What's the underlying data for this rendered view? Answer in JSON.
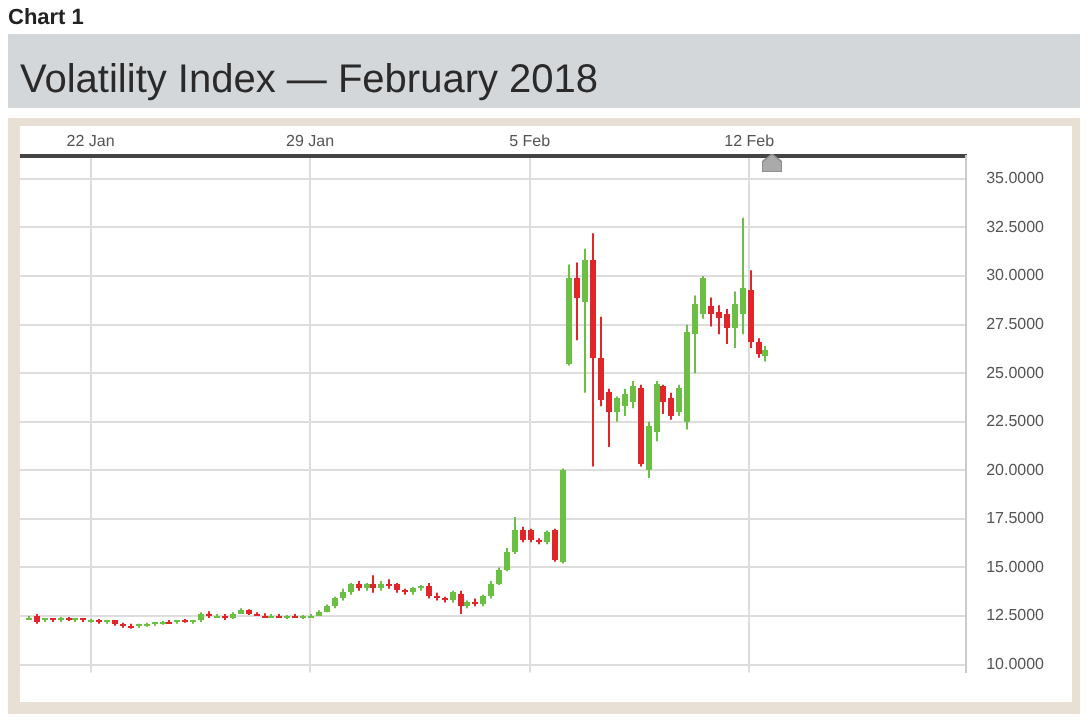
{
  "chart_data": {
    "type": "candlestick",
    "title": "Volatility Index — February 2018",
    "annotations": [
      "Chart 1"
    ],
    "x": [
      "2018-01-20T00:00",
      "2018-01-20T06:00",
      "2018-01-20T12:00",
      "2018-01-20T18:00",
      "2018-01-21T00:00",
      "2018-01-21T06:00",
      "2018-01-21T12:00",
      "2018-01-21T18:00",
      "2018-01-22T00:00",
      "2018-01-22T06:00",
      "2018-01-22T12:00",
      "2018-01-22T18:00",
      "2018-01-23T00:00",
      "2018-01-23T06:00",
      "2018-01-23T12:00",
      "2018-01-23T18:00",
      "2018-01-24T00:00",
      "2018-01-24T06:00",
      "2018-01-24T12:00",
      "2018-01-24T18:00",
      "2018-01-25T00:00",
      "2018-01-25T06:00",
      "2018-01-25T12:00",
      "2018-01-25T18:00",
      "2018-01-26T00:00",
      "2018-01-26T06:00",
      "2018-01-26T12:00",
      "2018-01-26T18:00",
      "2018-01-27T00:00",
      "2018-01-27T06:00",
      "2018-01-27T12:00",
      "2018-01-27T18:00",
      "2018-01-28T00:00",
      "2018-01-28T06:00",
      "2018-01-28T12:00",
      "2018-01-28T18:00",
      "2018-01-29T00:00",
      "2018-01-29T06:00",
      "2018-01-29T12:00",
      "2018-01-29T18:00",
      "2018-01-30T00:00",
      "2018-01-30T06:00",
      "2018-01-30T12:00",
      "2018-01-30T18:00",
      "2018-01-31T00:00",
      "2018-01-31T06:00",
      "2018-01-31T12:00",
      "2018-01-31T18:00",
      "2018-02-01T00:00",
      "2018-02-01T06:00",
      "2018-02-01T12:00",
      "2018-02-01T18:00",
      "2018-02-02T00:00",
      "2018-02-02T06:00",
      "2018-02-02T12:00",
      "2018-02-02T18:00",
      "2018-02-03T00:00",
      "2018-02-03T06:00",
      "2018-02-03T12:00",
      "2018-02-03T18:00",
      "2018-02-04T00:00",
      "2018-02-04T06:00",
      "2018-02-04T12:00",
      "2018-02-04T18:00",
      "2018-02-05T00:00",
      "2018-02-05T06:00",
      "2018-02-05T12:00",
      "2018-02-05T18:00",
      "2018-02-06T00:00",
      "2018-02-06T06:00",
      "2018-02-06T12:00",
      "2018-02-06T18:00",
      "2018-02-07T00:00",
      "2018-02-07T06:00",
      "2018-02-07T12:00",
      "2018-02-07T18:00",
      "2018-02-08T00:00",
      "2018-02-08T06:00",
      "2018-02-08T12:00",
      "2018-02-08T18:00",
      "2018-02-09T00:00",
      "2018-02-09T06:00",
      "2018-02-09T12:00",
      "2018-02-09T18:00",
      "2018-02-10T00:00",
      "2018-02-10T06:00",
      "2018-02-10T12:00",
      "2018-02-10T18:00",
      "2018-02-11T00:00",
      "2018-02-11T06:00",
      "2018-02-11T12:00",
      "2018-02-11T18:00",
      "2018-02-12T00:00",
      "2018-02-12T06:00",
      "2018-02-12T12:00"
    ],
    "ohlc": [
      [
        12.4,
        12.5,
        12.3,
        12.4
      ],
      [
        12.5,
        12.6,
        12.1,
        12.2
      ],
      [
        12.3,
        12.4,
        12.2,
        12.35
      ],
      [
        12.35,
        12.4,
        12.2,
        12.3
      ],
      [
        12.3,
        12.45,
        12.2,
        12.4
      ],
      [
        12.4,
        12.45,
        12.25,
        12.3
      ],
      [
        12.3,
        12.4,
        12.2,
        12.35
      ],
      [
        12.35,
        12.4,
        12.2,
        12.25
      ],
      [
        12.25,
        12.35,
        12.15,
        12.3
      ],
      [
        12.3,
        12.35,
        12.1,
        12.15
      ],
      [
        12.2,
        12.3,
        12.1,
        12.25
      ],
      [
        12.25,
        12.3,
        12.0,
        12.05
      ],
      [
        12.05,
        12.15,
        11.9,
        12.0
      ],
      [
        12.0,
        12.1,
        11.85,
        11.95
      ],
      [
        11.95,
        12.1,
        11.9,
        12.05
      ],
      [
        12.05,
        12.15,
        11.95,
        12.1
      ],
      [
        12.1,
        12.2,
        12.0,
        12.15
      ],
      [
        12.15,
        12.25,
        12.05,
        12.2
      ],
      [
        12.2,
        12.3,
        12.1,
        12.15
      ],
      [
        12.15,
        12.3,
        12.1,
        12.25
      ],
      [
        12.25,
        12.35,
        12.15,
        12.2
      ],
      [
        12.2,
        12.3,
        12.1,
        12.25
      ],
      [
        12.25,
        12.7,
        12.2,
        12.6
      ],
      [
        12.6,
        12.75,
        12.4,
        12.5
      ],
      [
        12.5,
        12.6,
        12.4,
        12.55
      ],
      [
        12.55,
        12.6,
        12.3,
        12.4
      ],
      [
        12.4,
        12.7,
        12.35,
        12.65
      ],
      [
        12.65,
        12.9,
        12.6,
        12.8
      ],
      [
        12.8,
        12.85,
        12.55,
        12.6
      ],
      [
        12.6,
        12.7,
        12.5,
        12.55
      ],
      [
        12.55,
        12.65,
        12.45,
        12.5
      ],
      [
        12.5,
        12.6,
        12.4,
        12.55
      ],
      [
        12.55,
        12.6,
        12.4,
        12.45
      ],
      [
        12.45,
        12.55,
        12.35,
        12.5
      ],
      [
        12.5,
        12.6,
        12.4,
        12.45
      ],
      [
        12.45,
        12.55,
        12.35,
        12.5
      ],
      [
        12.5,
        12.6,
        12.4,
        12.55
      ],
      [
        12.55,
        12.8,
        12.5,
        12.75
      ],
      [
        12.75,
        13.1,
        12.7,
        13.0
      ],
      [
        13.0,
        13.5,
        12.9,
        13.4
      ],
      [
        13.4,
        13.9,
        13.3,
        13.7
      ],
      [
        13.7,
        14.2,
        13.6,
        14.1
      ],
      [
        14.1,
        14.3,
        13.8,
        13.9
      ],
      [
        13.9,
        14.2,
        13.8,
        14.1
      ],
      [
        14.1,
        14.6,
        13.7,
        13.9
      ],
      [
        13.9,
        14.3,
        13.8,
        14.2
      ],
      [
        14.2,
        14.4,
        13.9,
        14.0
      ],
      [
        14.1,
        14.2,
        13.7,
        13.8
      ],
      [
        13.8,
        13.9,
        13.6,
        13.7
      ],
      [
        13.7,
        14.0,
        13.6,
        13.9
      ],
      [
        13.9,
        14.1,
        13.8,
        14.0
      ],
      [
        14.0,
        14.2,
        13.4,
        13.5
      ],
      [
        13.5,
        13.7,
        13.3,
        13.4
      ],
      [
        13.4,
        13.5,
        13.2,
        13.3
      ],
      [
        13.3,
        13.8,
        13.2,
        13.7
      ],
      [
        13.6,
        13.8,
        12.6,
        13.0
      ],
      [
        13.0,
        13.3,
        12.9,
        13.2
      ],
      [
        13.2,
        13.4,
        13.0,
        13.1
      ],
      [
        13.1,
        13.6,
        13.0,
        13.5
      ],
      [
        13.5,
        14.3,
        13.4,
        14.2
      ],
      [
        14.2,
        15.0,
        14.1,
        14.9
      ],
      [
        14.9,
        16.0,
        14.8,
        15.8
      ],
      [
        15.8,
        17.6,
        15.7,
        16.9
      ],
      [
        16.9,
        17.1,
        16.3,
        16.4
      ],
      [
        16.9,
        17.0,
        16.3,
        16.4
      ],
      [
        16.4,
        16.5,
        16.2,
        16.3
      ],
      [
        16.3,
        16.9,
        16.2,
        16.8
      ],
      [
        16.9,
        17.0,
        15.3,
        15.4
      ],
      [
        15.3,
        20.1,
        15.2,
        20.0
      ],
      [
        25.5,
        30.6,
        25.4,
        29.9
      ],
      [
        29.9,
        30.7,
        26.7,
        28.9
      ],
      [
        28.7,
        31.4,
        24.0,
        30.8
      ],
      [
        30.8,
        32.2,
        20.2,
        25.8
      ],
      [
        25.8,
        27.9,
        23.3,
        23.6
      ],
      [
        24.0,
        24.2,
        21.2,
        23.0
      ],
      [
        23.0,
        23.8,
        22.5,
        23.7
      ],
      [
        23.3,
        24.2,
        22.8,
        23.9
      ],
      [
        23.5,
        24.6,
        23.2,
        24.3
      ],
      [
        24.2,
        24.4,
        20.2,
        20.3
      ],
      [
        20.0,
        22.5,
        19.6,
        22.3
      ],
      [
        22.0,
        24.6,
        21.5,
        24.4
      ],
      [
        24.3,
        24.4,
        22.9,
        23.5
      ],
      [
        23.7,
        24.0,
        22.6,
        22.8
      ],
      [
        23.0,
        24.4,
        22.8,
        24.2
      ],
      [
        22.5,
        27.5,
        22.1,
        27.1
      ],
      [
        27.0,
        29.0,
        25.0,
        28.6
      ],
      [
        28.0,
        30.0,
        27.8,
        29.9
      ],
      [
        28.5,
        28.9,
        27.4,
        28.0
      ],
      [
        28.2,
        28.5,
        27.0,
        27.8
      ],
      [
        28.0,
        28.3,
        26.5,
        27.3
      ],
      [
        27.3,
        29.2,
        26.3,
        28.6
      ],
      [
        28.0,
        33.0,
        27.0,
        29.4
      ],
      [
        29.3,
        30.3,
        26.3,
        26.6
      ],
      [
        26.6,
        26.8,
        25.8,
        26.0
      ],
      [
        25.9,
        26.4,
        25.6,
        26.2
      ]
    ],
    "xlim": [
      "2018-01-19T18:00",
      "2018-02-18T22:00"
    ],
    "xticks": [
      {
        "value": "2018-01-22",
        "label": "22 Jan"
      },
      {
        "value": "2018-01-29",
        "label": "29 Jan"
      },
      {
        "value": "2018-02-05",
        "label": "5 Feb"
      },
      {
        "value": "2018-02-12",
        "label": "12 Feb"
      }
    ],
    "ylim": [
      9.6,
      36.2
    ],
    "yticks": [
      {
        "value": 10,
        "label": "10.0000"
      },
      {
        "value": 12.5,
        "label": "12.5000"
      },
      {
        "value": 15,
        "label": "15.0000"
      },
      {
        "value": 17.5,
        "label": "17.5000"
      },
      {
        "value": 20,
        "label": "20.0000"
      },
      {
        "value": 22.5,
        "label": "22.5000"
      },
      {
        "value": 25,
        "label": "25.0000"
      },
      {
        "value": 27.5,
        "label": "27.5000"
      },
      {
        "value": 30,
        "label": "30.0000"
      },
      {
        "value": 32.5,
        "label": "32.5000"
      },
      {
        "value": 35,
        "label": "35.0000"
      }
    ],
    "grid": true
  }
}
